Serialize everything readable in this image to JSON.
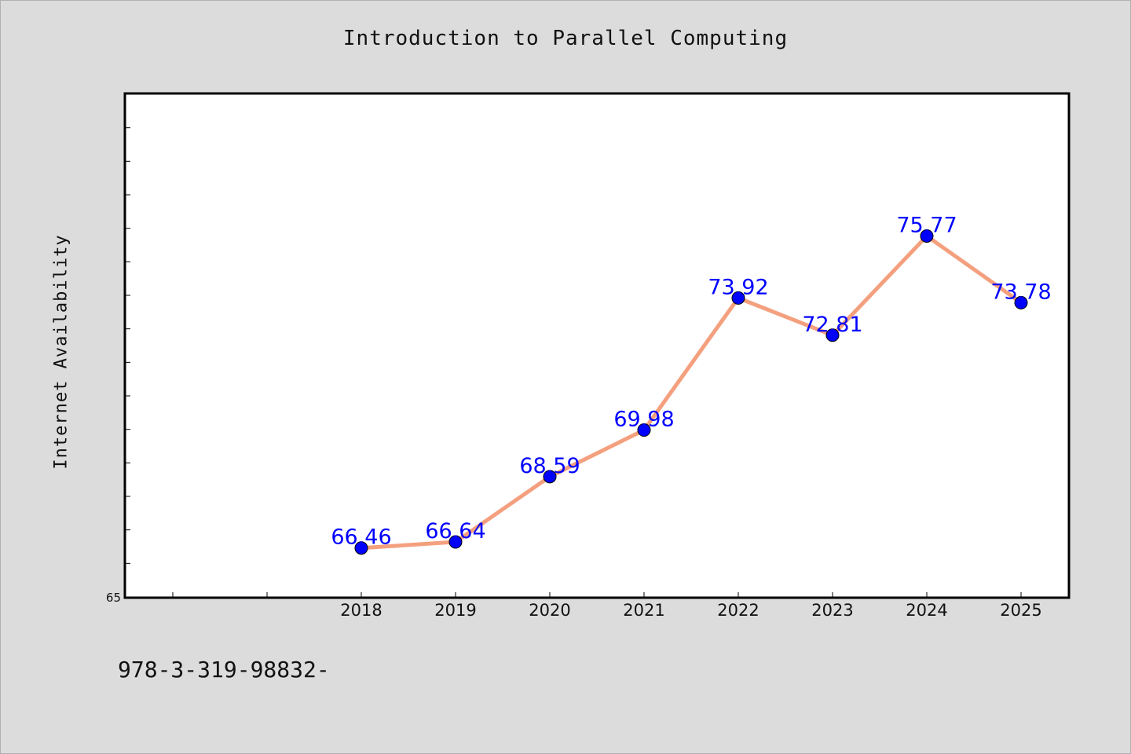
{
  "chart_data": {
    "type": "line",
    "title": "Introduction to Parallel Computing",
    "xlabel": "",
    "ylabel": "Internet Availability",
    "categories": [
      "2018",
      "2019",
      "2020",
      "2021",
      "2022",
      "2023",
      "2024",
      "2025"
    ],
    "series": [
      {
        "values": [
          66.46,
          66.64,
          68.59,
          69.98,
          73.92,
          72.81,
          75.77,
          73.78
        ]
      }
    ],
    "data_labels": [
      "66.46",
      "66.64",
      "68.59",
      "69.98",
      "73.92",
      "72.81",
      "75.77",
      "73.78"
    ],
    "ylim": [
      65,
      80
    ],
    "yticks_labeled": [
      "65"
    ],
    "x_slots": 10,
    "grid": false,
    "line_color": "#f4a07e",
    "marker_color": "#0000ff",
    "label_color": "#0000ff"
  },
  "footer": {
    "text": "978-3-319-98832-"
  }
}
